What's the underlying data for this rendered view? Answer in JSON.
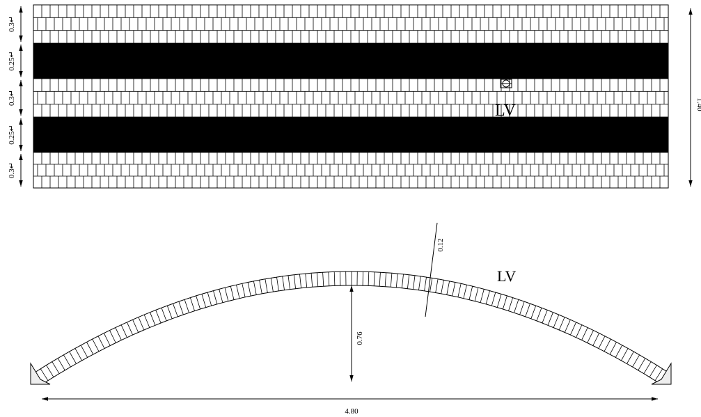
{
  "plan": {
    "dimensions": [
      "0.3↵",
      "0.25↵",
      "0.3↵",
      "0.25↵",
      "0.3↵"
    ],
    "width_label": "1.40",
    "label": "LV"
  },
  "section": {
    "label": "LV",
    "thickness_label": "0.12",
    "rise_label": "0.76",
    "span_label": "4.80"
  }
}
